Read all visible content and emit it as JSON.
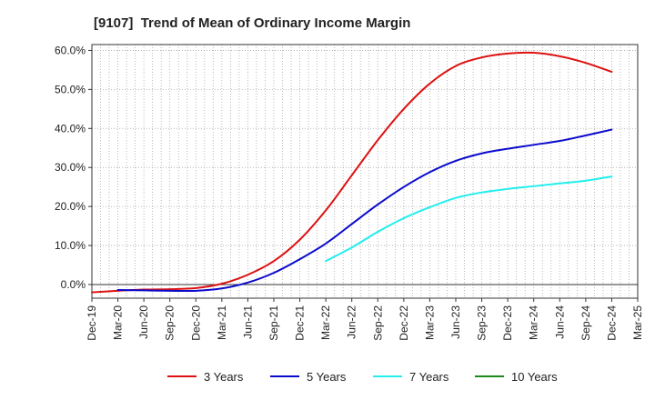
{
  "chart_data": {
    "type": "line",
    "title": "[9107]  Trend of Mean of Ordinary Income Margin",
    "xlabel": "",
    "ylabel": "",
    "x": [
      "Dec-19",
      "Mar-20",
      "Jun-20",
      "Sep-20",
      "Dec-20",
      "Mar-21",
      "Jun-21",
      "Sep-21",
      "Dec-21",
      "Mar-22",
      "Jun-22",
      "Sep-22",
      "Dec-22",
      "Mar-23",
      "Jun-23",
      "Sep-23",
      "Dec-23",
      "Mar-24",
      "Jun-24",
      "Sep-24",
      "Dec-24",
      "Mar-25"
    ],
    "ylim": [
      -3.5,
      61.5
    ],
    "yticks": [
      0,
      10,
      20,
      30,
      40,
      50,
      60
    ],
    "ytick_labels": [
      "0.0%",
      "10.0%",
      "20.0%",
      "30.0%",
      "40.0%",
      "50.0%",
      "60.0%"
    ],
    "grid": true,
    "legend": "bottom",
    "series": [
      {
        "name": "3 Years",
        "color": "#dd1111",
        "values": [
          -2.0,
          -1.6,
          -1.3,
          -1.2,
          -0.9,
          0.2,
          2.5,
          6.0,
          11.5,
          19.0,
          28.0,
          37.0,
          45.0,
          51.5,
          56.0,
          58.2,
          59.2,
          59.4,
          58.5,
          56.8,
          54.5,
          null
        ]
      },
      {
        "name": "5 Years",
        "color": "#0a0acc",
        "values": [
          null,
          -1.4,
          -1.5,
          -1.6,
          -1.6,
          -1.0,
          0.5,
          3.0,
          6.5,
          10.5,
          15.5,
          20.5,
          25.0,
          28.8,
          31.7,
          33.6,
          34.8,
          35.8,
          36.8,
          38.2,
          39.7,
          null
        ]
      },
      {
        "name": "7 Years",
        "color": "#22eeee",
        "values": [
          null,
          null,
          null,
          null,
          null,
          null,
          null,
          null,
          null,
          6.0,
          9.5,
          13.5,
          17.0,
          19.8,
          22.2,
          23.6,
          24.5,
          25.2,
          25.9,
          26.6,
          27.7,
          null
        ]
      },
      {
        "name": "10 Years",
        "color": "#1a8a1a",
        "values": [
          null,
          null,
          null,
          null,
          null,
          null,
          null,
          null,
          null,
          null,
          null,
          null,
          null,
          null,
          null,
          null,
          null,
          null,
          null,
          null,
          null,
          null
        ]
      }
    ]
  }
}
